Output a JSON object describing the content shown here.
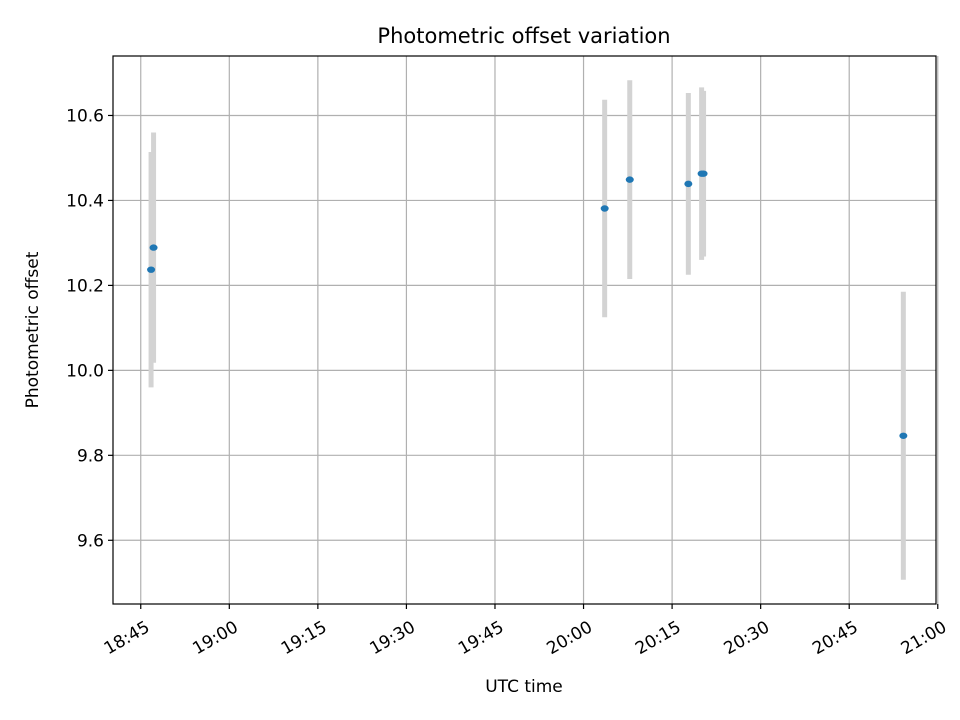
{
  "chart_data": {
    "type": "scatter",
    "title": "Photometric offset variation",
    "xlabel": "UTC time",
    "ylabel": "Photometric offset",
    "x_tick_labels": [
      "18:45",
      "19:00",
      "19:15",
      "19:30",
      "19:45",
      "20:00",
      "20:15",
      "20:30",
      "20:45",
      "21:00"
    ],
    "x_tick_minutes": [
      0,
      15,
      30,
      45,
      60,
      75,
      90,
      105,
      120,
      135
    ],
    "y_ticks": [
      9.6,
      9.8,
      10.0,
      10.2,
      10.4,
      10.6
    ],
    "y_tick_labels": [
      "9.6",
      "9.8",
      "10.0",
      "10.2",
      "10.4",
      "10.6"
    ],
    "xlim_minutes": [
      -4.7,
      134.7
    ],
    "ylim": [
      9.45,
      10.74
    ],
    "grid": true,
    "colors": {
      "point": "#1f77b4",
      "errorbar": "#d3d3d3",
      "grid": "#b0b0b0"
    },
    "points": [
      {
        "time": "18:46:45",
        "t": 1.75,
        "y": 10.237,
        "err": 0.277
      },
      {
        "time": "18:47:10",
        "t": 2.17,
        "y": 10.289,
        "err": 0.271
      },
      {
        "time": "20:03:35",
        "t": 78.58,
        "y": 10.381,
        "err": 0.256
      },
      {
        "time": "20:07:50",
        "t": 82.83,
        "y": 10.449,
        "err": 0.234
      },
      {
        "time": "20:17:45",
        "t": 92.75,
        "y": 10.439,
        "err": 0.214
      },
      {
        "time": "20:20:00",
        "t": 95.0,
        "y": 10.463,
        "err": 0.203
      },
      {
        "time": "20:20:20",
        "t": 95.33,
        "y": 10.463,
        "err": 0.195
      },
      {
        "time": "20:54:10",
        "t": 129.17,
        "y": 9.846,
        "err": 0.339
      }
    ]
  }
}
